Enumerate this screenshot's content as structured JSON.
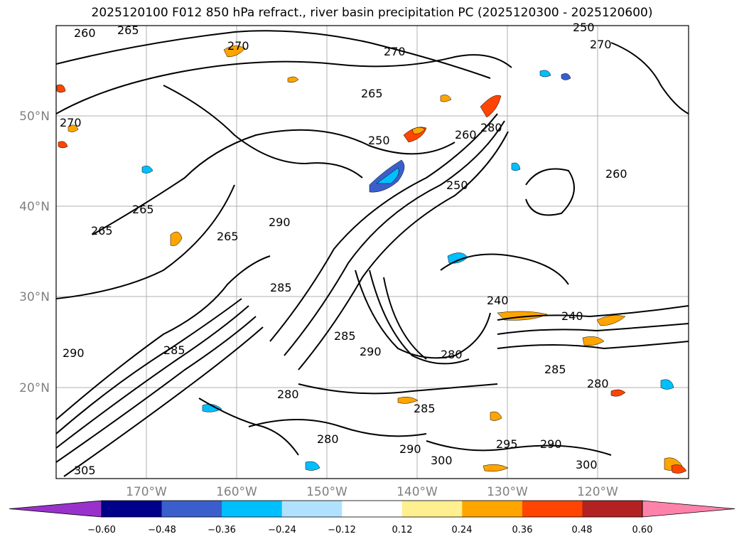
{
  "title": "2025120100 F012 850 hPa refract., river basin precipitation PC (2025120300 - 2025120600)",
  "map": {
    "lat_labels": [
      "50°N",
      "40°N",
      "30°N",
      "20°N"
    ],
    "lon_labels": [
      "170°W",
      "160°W",
      "150°W",
      "140°W",
      "130°W",
      "120°W"
    ],
    "contour_labels": [
      "260",
      "265",
      "270",
      "270",
      "265",
      "250",
      "260",
      "280",
      "250",
      "270",
      "265",
      "265",
      "265",
      "290",
      "285",
      "285",
      "290",
      "285",
      "280",
      "290",
      "280",
      "240",
      "240",
      "285",
      "280",
      "285",
      "280",
      "295",
      "290",
      "300",
      "290",
      "300",
      "305",
      "260",
      "270",
      "250"
    ]
  },
  "colorbar": {
    "colors": [
      "#9932cc",
      "#00008b",
      "#3a5fcd",
      "#00bfff",
      "#b0e2ff",
      "#ffffff",
      "#fff08f",
      "#ffa500",
      "#ff4500",
      "#b22222",
      "#ff82ab"
    ],
    "ticks": [
      "−0.60",
      "−0.48",
      "−0.36",
      "−0.24",
      "−0.12",
      "0.12",
      "0.24",
      "0.36",
      "0.48",
      "0.60"
    ]
  }
}
